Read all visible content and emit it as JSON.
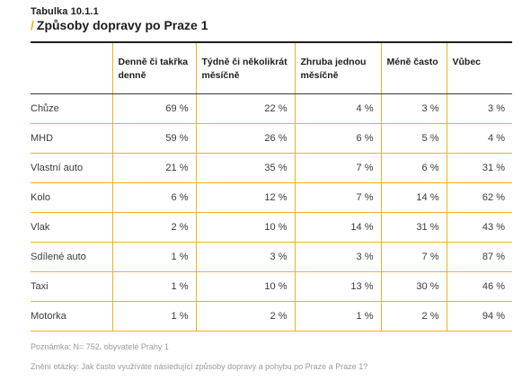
{
  "header": {
    "label": "Tabulka 10.1.1",
    "title_slash": "/",
    "title": "Způsoby dopravy po Praze 1"
  },
  "table": {
    "columns": [
      "",
      "Denně či takřka denně",
      "Týdně či několikrát měsíčně",
      "Zhruba jednou měsíčně",
      "Méně často",
      "Vůbec"
    ],
    "rows": [
      {
        "label": "Chůze",
        "values": [
          "69 %",
          "22 %",
          "4 %",
          "3 %",
          "3 %"
        ]
      },
      {
        "label": "MHD",
        "values": [
          "59 %",
          "26 %",
          "6 %",
          "5 %",
          "4 %"
        ]
      },
      {
        "label": "Vlastní auto",
        "values": [
          "21 %",
          "35 %",
          "7 %",
          "6 %",
          "31 %"
        ]
      },
      {
        "label": "Kolo",
        "values": [
          "6 %",
          "12 %",
          "7 %",
          "14 %",
          "62 %"
        ]
      },
      {
        "label": "Vlak",
        "values": [
          "2 %",
          "10 %",
          "14 %",
          "31 %",
          "43 %"
        ]
      },
      {
        "label": "Sdílené auto",
        "values": [
          "1 %",
          "3 %",
          "3 %",
          "7 %",
          "87 %"
        ]
      },
      {
        "label": "Taxi",
        "values": [
          "1 %",
          "10 %",
          "13 %",
          "30 %",
          "46 %"
        ]
      },
      {
        "label": "Motorka",
        "values": [
          "1 %",
          "2 %",
          "1 %",
          "2 %",
          "94 %"
        ]
      }
    ]
  },
  "notes": {
    "note": "Poznámka: N= 752, obyvatelé Prahy 1",
    "question": "Znění otázky: Jak často využíváte následující způsoby dopravy a pohybu po Praze a Praze 1?"
  },
  "colors": {
    "accent": "#f2b31b",
    "text": "#3a3a3a",
    "heading": "#1c1c1c",
    "muted": "#9a9a9a"
  }
}
